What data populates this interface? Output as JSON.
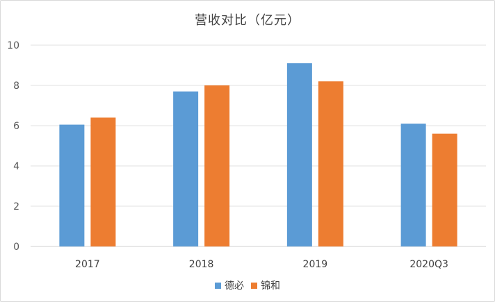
{
  "chart_data": {
    "type": "bar",
    "title": "营收对比（亿元）",
    "categories": [
      "2017",
      "2018",
      "2019",
      "2020Q3"
    ],
    "series": [
      {
        "name": "德必",
        "values": [
          6.05,
          7.7,
          9.1,
          6.1
        ],
        "color": "#5b9bd5"
      },
      {
        "name": "锦和",
        "values": [
          6.4,
          8.0,
          8.2,
          5.6
        ],
        "color": "#ed7d31"
      }
    ],
    "ylim": [
      0,
      10
    ],
    "yticks": [
      0,
      2,
      4,
      6,
      8,
      10
    ],
    "grid": true,
    "legend_position": "bottom"
  }
}
